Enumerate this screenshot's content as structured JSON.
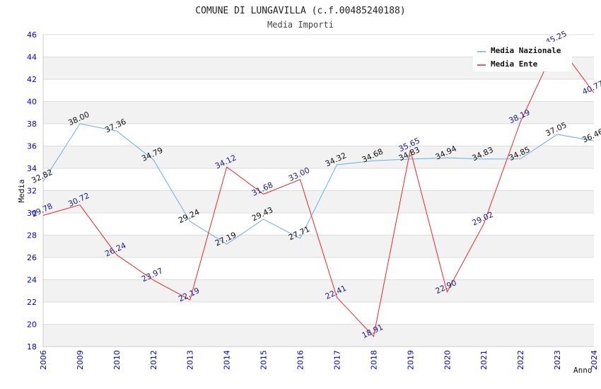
{
  "chart_data": {
    "type": "line",
    "title": "COMUNE DI LUNGAVILLA (c.f.00485240188)",
    "subtitle": "Media Importi",
    "xlabel": "Anno",
    "ylabel": "Media",
    "ylim": [
      18,
      46
    ],
    "yticks": [
      18,
      20,
      22,
      24,
      26,
      28,
      30,
      32,
      34,
      36,
      38,
      40,
      42,
      44,
      46
    ],
    "categories": [
      "2006",
      "2009",
      "2010",
      "2012",
      "2013",
      "2014",
      "2015",
      "2016",
      "2017",
      "2018",
      "2019",
      "2020",
      "2021",
      "2022",
      "2023",
      "2024"
    ],
    "series": [
      {
        "name": "Media Nazionale",
        "color": "#6aaee6",
        "values": [
          32.82,
          38.0,
          37.36,
          34.79,
          29.24,
          27.19,
          29.43,
          27.71,
          34.32,
          34.68,
          34.83,
          34.94,
          34.83,
          34.85,
          37.05,
          36.46
        ],
        "labels": [
          "32.82",
          "38.00",
          "37.36",
          "34.79",
          "29.24",
          "27.19",
          "29.43",
          "27.71",
          "34.32",
          "34.68",
          "34.83",
          "34.94",
          "34.83",
          "34.85",
          "37.05",
          "36.46"
        ]
      },
      {
        "name": "Media Ente",
        "color": "#e8262c",
        "values": [
          29.78,
          30.72,
          26.24,
          23.97,
          22.19,
          34.12,
          31.68,
          33.0,
          22.41,
          18.91,
          35.65,
          22.9,
          29.02,
          38.19,
          45.25,
          40.77
        ],
        "labels": [
          "29.78",
          "30.72",
          "26.24",
          "23.97",
          "22.19",
          "34.12",
          "31.68",
          "33.00",
          "22.41",
          "18.91",
          "35.65",
          "22.90",
          "29.02",
          "38.19",
          "45.25",
          "40.77"
        ]
      }
    ],
    "legend_position": "top-right",
    "grid": true
  }
}
